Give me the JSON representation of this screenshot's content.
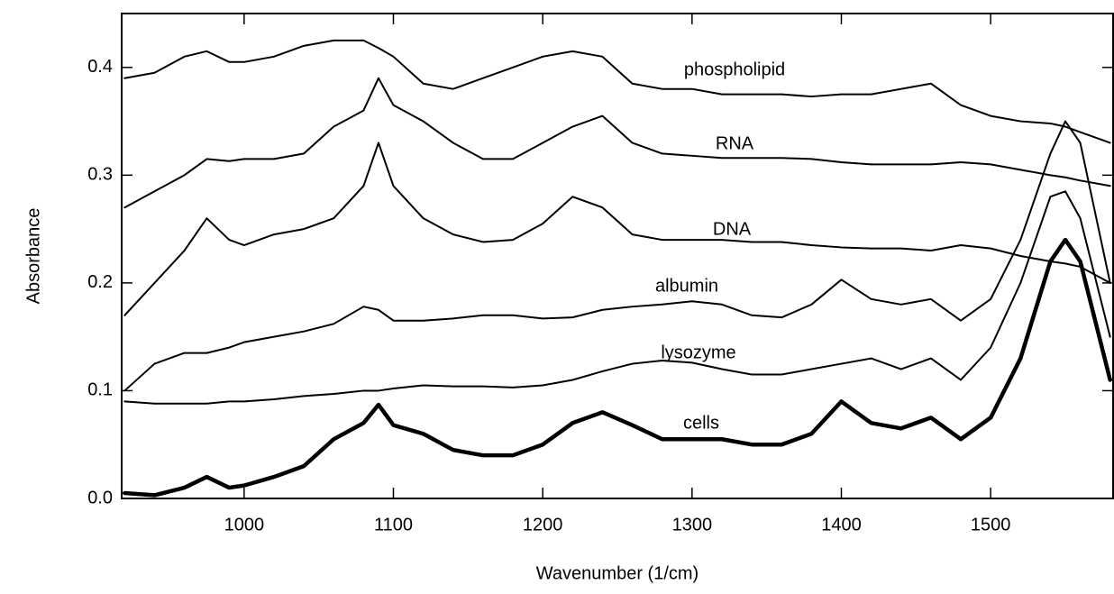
{
  "chart_data": {
    "type": "line",
    "x_label": "Wavenumber (1/cm)",
    "y_label": "Absorbance",
    "xlim": [
      918,
      1582
    ],
    "ylim": [
      0,
      0.45
    ],
    "xticks": [
      1000,
      1100,
      1200,
      1300,
      1400,
      1500
    ],
    "yticks": [
      {
        "value": 0,
        "label": "0.0"
      },
      0.1,
      0.2,
      0.3,
      0.4
    ],
    "x": [
      920,
      940,
      960,
      975,
      990,
      1000,
      1020,
      1040,
      1060,
      1080,
      1090,
      1100,
      1120,
      1140,
      1160,
      1180,
      1200,
      1220,
      1240,
      1260,
      1280,
      1300,
      1320,
      1340,
      1360,
      1380,
      1400,
      1420,
      1440,
      1460,
      1480,
      1500,
      1520,
      1540,
      1550,
      1560,
      1580
    ],
    "series": [
      {
        "name": "phospholipid",
        "color": "#000000",
        "line_width": 2,
        "values": [
          0.39,
          0.395,
          0.41,
          0.415,
          0.405,
          0.405,
          0.41,
          0.42,
          0.425,
          0.425,
          0.418,
          0.41,
          0.385,
          0.38,
          0.39,
          0.4,
          0.41,
          0.415,
          0.41,
          0.385,
          0.38,
          0.38,
          0.375,
          0.375,
          0.375,
          0.373,
          0.375,
          0.375,
          0.38,
          0.385,
          0.365,
          0.355,
          0.35,
          0.348,
          0.345,
          0.34,
          0.33
        ]
      },
      {
        "name": "RNA",
        "color": "#000000",
        "line_width": 2,
        "values": [
          0.27,
          0.285,
          0.3,
          0.315,
          0.313,
          0.315,
          0.315,
          0.32,
          0.345,
          0.36,
          0.39,
          0.365,
          0.35,
          0.33,
          0.315,
          0.315,
          0.33,
          0.345,
          0.355,
          0.33,
          0.32,
          0.318,
          0.316,
          0.316,
          0.316,
          0.315,
          0.312,
          0.31,
          0.31,
          0.31,
          0.312,
          0.31,
          0.305,
          0.3,
          0.298,
          0.295,
          0.29
        ]
      },
      {
        "name": "DNA",
        "color": "#000000",
        "line_width": 2,
        "values": [
          0.17,
          0.2,
          0.23,
          0.26,
          0.24,
          0.235,
          0.245,
          0.25,
          0.26,
          0.29,
          0.33,
          0.29,
          0.26,
          0.245,
          0.238,
          0.24,
          0.255,
          0.28,
          0.27,
          0.245,
          0.24,
          0.24,
          0.24,
          0.238,
          0.238,
          0.235,
          0.233,
          0.232,
          0.232,
          0.23,
          0.235,
          0.232,
          0.225,
          0.22,
          0.218,
          0.215,
          0.2
        ]
      },
      {
        "name": "albumin",
        "color": "#000000",
        "line_width": 2,
        "values": [
          0.1,
          0.125,
          0.135,
          0.135,
          0.14,
          0.145,
          0.15,
          0.155,
          0.162,
          0.178,
          0.175,
          0.165,
          0.165,
          0.167,
          0.17,
          0.17,
          0.167,
          0.168,
          0.175,
          0.178,
          0.18,
          0.183,
          0.18,
          0.17,
          0.168,
          0.18,
          0.203,
          0.185,
          0.18,
          0.185,
          0.165,
          0.185,
          0.24,
          0.32,
          0.35,
          0.33,
          0.2
        ]
      },
      {
        "name": "lysozyme",
        "color": "#000000",
        "line_width": 2,
        "values": [
          0.09,
          0.088,
          0.088,
          0.088,
          0.09,
          0.09,
          0.092,
          0.095,
          0.097,
          0.1,
          0.1,
          0.102,
          0.105,
          0.104,
          0.104,
          0.103,
          0.105,
          0.11,
          0.118,
          0.125,
          0.128,
          0.126,
          0.12,
          0.115,
          0.115,
          0.12,
          0.125,
          0.13,
          0.12,
          0.13,
          0.11,
          0.14,
          0.2,
          0.28,
          0.285,
          0.26,
          0.15
        ]
      },
      {
        "name": "cells",
        "color": "#000000",
        "line_width": 4.5,
        "values": [
          0.005,
          0.003,
          0.01,
          0.02,
          0.01,
          0.012,
          0.02,
          0.03,
          0.055,
          0.07,
          0.087,
          0.068,
          0.06,
          0.045,
          0.04,
          0.04,
          0.05,
          0.07,
          0.08,
          0.068,
          0.055,
          0.055,
          0.055,
          0.05,
          0.05,
          0.06,
          0.09,
          0.07,
          0.065,
          0.075,
          0.055,
          0.075,
          0.13,
          0.22,
          0.24,
          0.22,
          0.11
        ]
      }
    ]
  }
}
